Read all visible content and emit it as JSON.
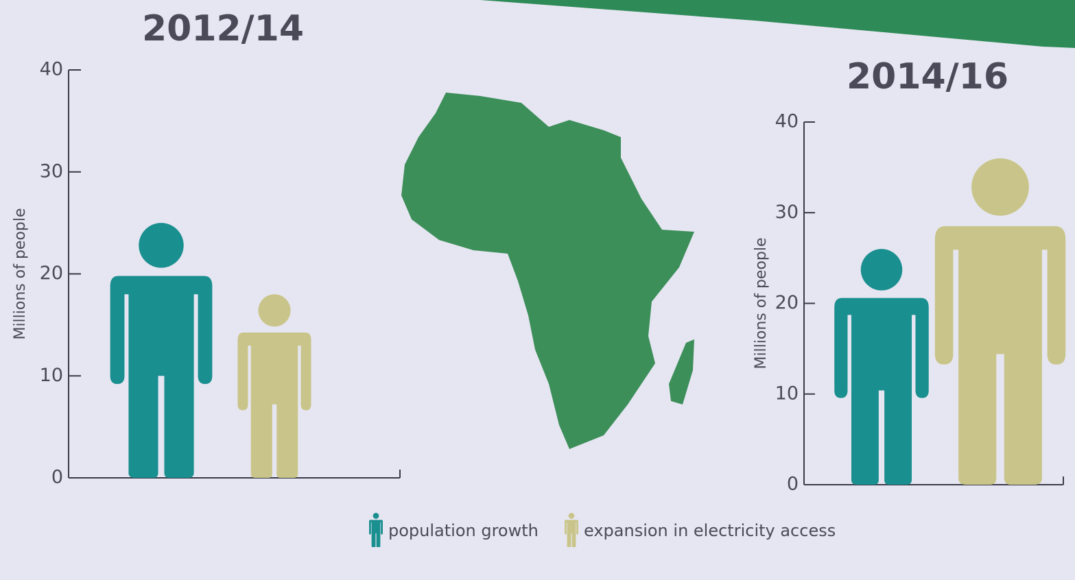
{
  "chart_data": [
    {
      "type": "pictograph",
      "title": "2012/14",
      "y_label": "Millions of people",
      "series": [
        {
          "name": "population growth",
          "color": "#1a8f8f",
          "values": [
            25
          ]
        },
        {
          "name": "expansion in electricity access",
          "color": "#c9c58a",
          "values": [
            18
          ]
        }
      ],
      "ylim": [
        0,
        40
      ],
      "yticks": [
        0,
        10,
        20,
        30,
        40
      ]
    },
    {
      "type": "pictograph",
      "title": "2014/16",
      "y_label": "Millions of people",
      "series": [
        {
          "color": "#1a8f8f",
          "values": [
            26
          ]
        },
        {
          "color": "#c9c58a",
          "values": [
            36
          ]
        }
      ],
      "ylim": [
        0,
        40
      ],
      "yticks": [
        0,
        10,
        20,
        30,
        40
      ]
    }
  ]
}
